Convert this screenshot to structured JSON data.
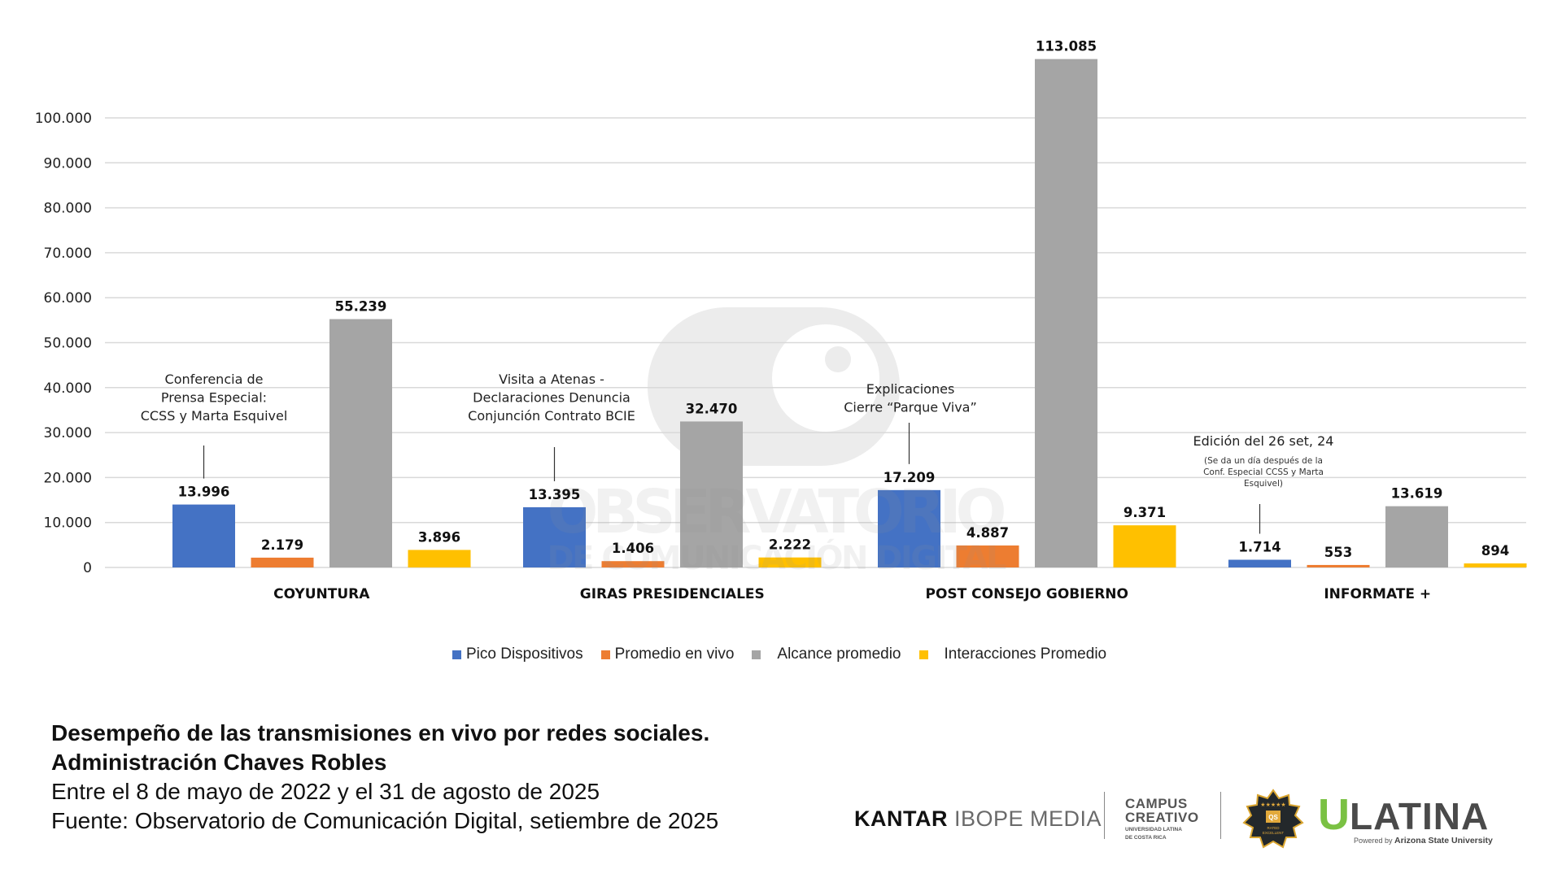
{
  "chart_data": {
    "type": "bar",
    "title": "Desempeño de las transmisiones en vivo por redes sociales. Administración Chaves Robles",
    "subtitle": "Entre el 8 de mayo de 2022 y el 31 de agosto de 2025",
    "source": "Fuente: Observatorio de Comunicación Digital, setiembre de 2025",
    "xlabel": "",
    "ylabel": "",
    "ylim": [
      0,
      100000
    ],
    "yticks": [
      0,
      10000,
      20000,
      30000,
      40000,
      50000,
      60000,
      70000,
      80000,
      90000,
      100000
    ],
    "ytick_labels": [
      "0",
      "10.000",
      "20.000",
      "30.000",
      "40.000",
      "50.000",
      "60.000",
      "70.000",
      "80.000",
      "90.000",
      "100.000"
    ],
    "grid": true,
    "legend_position": "bottom",
    "categories": [
      "COYUNTURA",
      "GIRAS PRESIDENCIALES",
      "POST CONSEJO GOBIERNO",
      "INFORMATE +"
    ],
    "series": [
      {
        "name": "Pico Dispositivos",
        "color": "#4472c4",
        "values": [
          13996,
          13395,
          17209,
          1714
        ],
        "labels": [
          "13.996",
          "13.395",
          "17.209",
          "1.714"
        ]
      },
      {
        "name": "Promedio en vivo",
        "color": "#ed7d31",
        "values": [
          2179,
          1406,
          4887,
          553
        ],
        "labels": [
          "2.179",
          "1.406",
          "4.887",
          "553"
        ]
      },
      {
        "name": "Alcance promedio",
        "color": "#a5a5a5",
        "values": [
          55239,
          32470,
          113085,
          13619
        ],
        "labels": [
          "55.239",
          "32.470",
          "113.085",
          "13.619"
        ]
      },
      {
        "name": "Interacciones Promedio",
        "color": "#ffc000",
        "values": [
          3896,
          2222,
          9371,
          894
        ],
        "labels": [
          "3.896",
          "2.222",
          "9.371",
          "894"
        ]
      }
    ],
    "annotations": [
      {
        "category": "COYUNTURA",
        "lines": [
          "Conferencia de",
          "Prensa Especial:",
          "CCSS y Marta Esquivel"
        ],
        "note": []
      },
      {
        "category": "GIRAS PRESIDENCIALES",
        "lines": [
          "Visita a Atenas -",
          "Declaraciones Denuncia",
          "Conjunción Contrato BCIE"
        ],
        "note": []
      },
      {
        "category": "POST CONSEJO GOBIERNO",
        "lines": [
          "Explicaciones",
          "Cierre “Parque Viva”"
        ],
        "note": []
      },
      {
        "category": "INFORMATE +",
        "lines": [
          "Edición del 26 set, 24"
        ],
        "note": [
          "(Se da un día después de la",
          "Conf. Especial CCSS y Marta",
          "Esquivel)"
        ]
      }
    ],
    "watermark": [
      "OBSERVATORIO",
      "DE COMUNICACIÓN DIGITAL"
    ]
  },
  "caption": {
    "line1": "Desempeño de las transmisiones en vivo por redes sociales.",
    "line2": "Administración Chaves Robles",
    "line3": "Entre el 8 de mayo de 2022 y el 31 de agosto de 2025",
    "line4": "Fuente: Observatorio de Comunicación Digital, setiembre de 2025"
  },
  "logos": {
    "kantar_bold": "KANTAR",
    "kantar_light": "IBOPE MEDIA",
    "campus_line1": "CAMPUS",
    "campus_line2": "CREATIVO",
    "campus_sub1": "UNIVERSIDAD LATINA",
    "campus_sub2": "DE COSTA RICA",
    "qs_badge": "QS",
    "qs_rated": "RATED",
    "qs_excellent": "EXCELLENT",
    "ulatina_u": "U",
    "ulatina_rest": "LATINA",
    "ulatina_powered": "Powered by",
    "ulatina_asu": "Arizona State University"
  }
}
